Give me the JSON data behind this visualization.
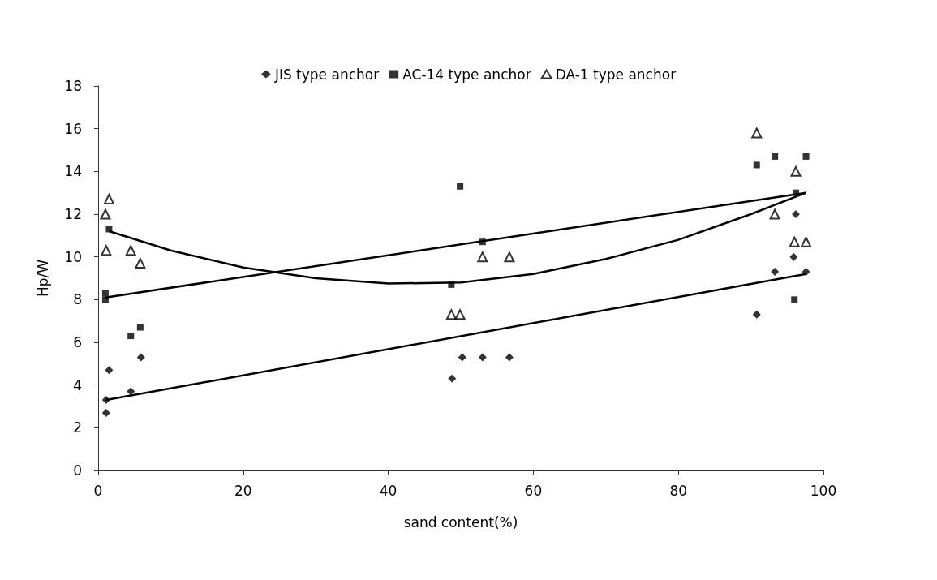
{
  "chart_data": {
    "type": "scatter",
    "xlabel": "sand content(%)",
    "ylabel": "Hp/W",
    "xlim": [
      0,
      100
    ],
    "xticks": [
      0,
      20,
      40,
      60,
      80,
      100
    ],
    "ylim": [
      0,
      18
    ],
    "yticks": [
      0,
      2,
      4,
      6,
      8,
      10,
      12,
      14,
      16,
      18
    ],
    "grid": false,
    "legend": "top",
    "series": [
      {
        "name": "JIS type anchor",
        "color": "#000000",
        "marker": "diamond",
        "x": [
          1.1,
          1.1,
          1.5,
          4.5,
          5.9,
          48.8,
          50.2,
          53,
          56.7,
          90.8,
          93.3,
          95.9,
          96.2,
          97.6
        ],
        "values": [
          2.7,
          3.3,
          4.7,
          3.7,
          5.3,
          4.3,
          5.3,
          5.3,
          5.3,
          7.3,
          9.3,
          10.0,
          12.0,
          9.3
        ]
      },
      {
        "name": "AC-14 type anchor",
        "color": "#000000",
        "marker": "square",
        "x": [
          1.5,
          1.0,
          1.0,
          4.5,
          5.8,
          49.9,
          53,
          48.7,
          93.3,
          97.6,
          90.8,
          96.2,
          96.0
        ],
        "values": [
          11.3,
          8.3,
          8.0,
          6.3,
          6.7,
          13.3,
          10.7,
          8.7,
          14.7,
          14.7,
          14.3,
          13.0,
          8.0
        ]
      },
      {
        "name": "DA-1 type anchor",
        "color": "#000000",
        "marker": "triangle",
        "x": [
          1.5,
          1.0,
          1.1,
          4.5,
          5.8,
          53,
          56.7,
          48.7,
          49.9,
          90.8,
          96.2,
          93.3,
          96.0,
          97.6
        ],
        "values": [
          12.7,
          12.0,
          10.3,
          10.3,
          9.7,
          10.0,
          10.0,
          7.3,
          7.3,
          15.8,
          14.0,
          12.0,
          10.7,
          10.7
        ]
      },
      {
        "type": "line",
        "color": "#000000",
        "marker": "none",
        "x": [
          1.1,
          97.6
        ],
        "values": [
          3.3,
          9.2
        ]
      },
      {
        "type": "line",
        "color": "#000000",
        "marker": "none",
        "x": [
          1.0,
          97.6
        ],
        "values": [
          8.1,
          13.0
        ]
      },
      {
        "type": "line",
        "color": "#000000",
        "marker": "none",
        "x": [
          1.5,
          10,
          20,
          30,
          40,
          50,
          60,
          70,
          80,
          90,
          97.6
        ],
        "values": [
          11.2,
          10.3,
          9.5,
          9.0,
          8.75,
          8.8,
          9.2,
          9.9,
          10.8,
          12.0,
          13.0
        ]
      }
    ]
  }
}
